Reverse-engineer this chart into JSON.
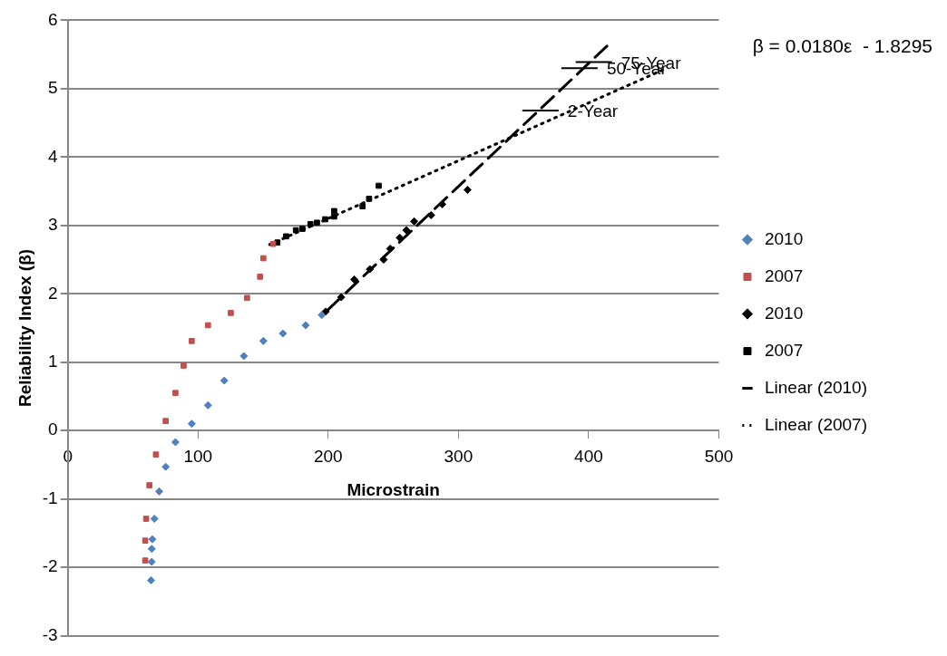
{
  "chart_data": {
    "type": "scatter",
    "xlabel": "Microstrain",
    "ylabel": "Reliability Index (β)",
    "xlim": [
      0,
      500
    ],
    "xticks": [
      0,
      100,
      200,
      300,
      400,
      500
    ],
    "ylim": [
      -3,
      6
    ],
    "yticks": [
      -3,
      -2,
      -1,
      0,
      1,
      2,
      3,
      4,
      5,
      6
    ],
    "grid": "y",
    "legend": "right",
    "series": [
      {
        "name": "2010",
        "marker": "diamond",
        "color": "#4f81bd",
        "x": [
          64,
          64.5,
          64.5,
          65,
          66.5,
          70.2,
          75.2,
          82.7,
          95.2,
          107.7,
          120.2,
          135.2,
          150.2,
          165.2,
          182.7,
          195.1
        ],
        "values": [
          -2.19,
          -1.92,
          -1.73,
          -1.59,
          -1.29,
          -0.89,
          -0.53,
          -0.17,
          0.1,
          0.37,
          0.73,
          1.09,
          1.31,
          1.42,
          1.54,
          1.69
        ]
      },
      {
        "name": "2007",
        "marker": "square",
        "color": "#c0504d",
        "x": [
          59.5,
          59.5,
          60.2,
          62.7,
          67.7,
          75.2,
          82.7,
          89,
          95.2,
          107.7,
          125.2,
          137.7,
          147.7,
          150.2,
          157.7
        ],
        "values": [
          -1.9,
          -1.61,
          -1.29,
          -0.8,
          -0.35,
          0.14,
          0.55,
          0.95,
          1.31,
          1.54,
          1.72,
          1.94,
          2.25,
          2.52,
          2.73
        ]
      },
      {
        "name": "2010",
        "marker": "diamond",
        "color": "#000000",
        "x": [
          198,
          210,
          220,
          232,
          242.6,
          247.6,
          255,
          260,
          266,
          279,
          287.6,
          307
        ],
        "values": [
          1.74,
          1.95,
          2.21,
          2.36,
          2.5,
          2.66,
          2.82,
          2.93,
          3.06,
          3.15,
          3.31,
          3.52
        ]
      },
      {
        "name": "2007",
        "marker": "square",
        "color": "#000000",
        "x": [
          161,
          167.7,
          175.2,
          180.2,
          186.4,
          191.4,
          197.7,
          204.6,
          204.6,
          226.4,
          231.4,
          238.8
        ],
        "values": [
          2.75,
          2.84,
          2.93,
          2.95,
          3.02,
          3.04,
          3.09,
          3.13,
          3.21,
          3.28,
          3.39,
          3.58
        ]
      },
      {
        "name": "Linear (2010)",
        "type": "line",
        "line_style": "dashed",
        "marker": "none",
        "color": "#000000",
        "x": [
          200,
          415
        ],
        "values": [
          1.77,
          5.64
        ]
      },
      {
        "name": "Linear (2007)",
        "type": "line",
        "line_style": "dotted",
        "marker": "none",
        "color": "#000000",
        "x": [
          155,
          460
        ],
        "values": [
          2.72,
          5.3
        ]
      }
    ],
    "annotations": [
      "β = 0.0180ε  - 1.8295",
      {
        "text": "2-Year",
        "x": 363,
        "y": 4.68
      },
      {
        "text": "50-Year",
        "x": 393,
        "y": 5.3
      },
      {
        "text": "75-Year",
        "x": 404,
        "y": 5.39
      }
    ]
  }
}
